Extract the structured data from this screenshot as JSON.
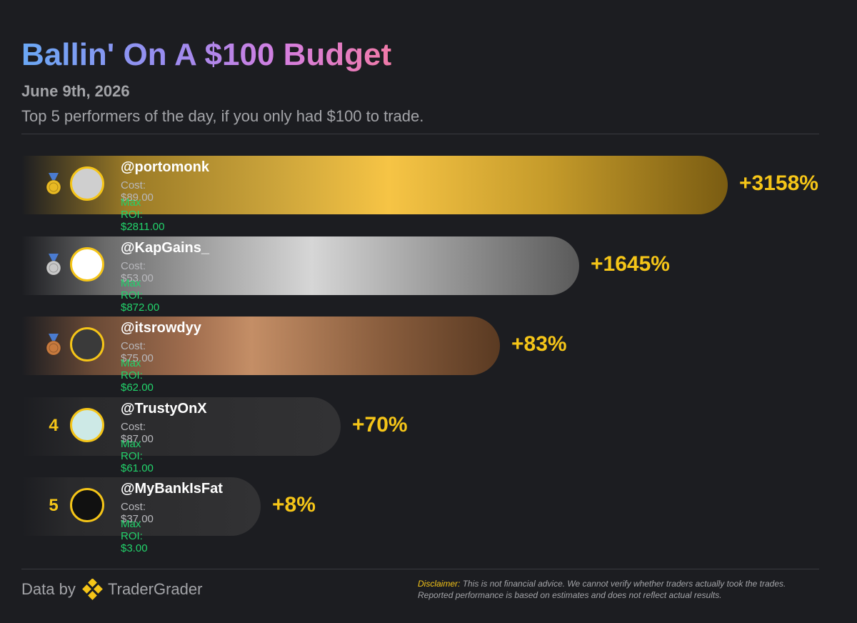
{
  "header": {
    "title": "Ballin' On A $100 Budget",
    "date": "June 9th, 2026",
    "subtitle": "Top 5 performers of the day, if you only had $100 to trade."
  },
  "rows": [
    {
      "handle": "@portomonk",
      "cost": "Cost: $89.00",
      "max_roi": "Max ROI: $2811.00",
      "roi": "+3158%"
    },
    {
      "handle": "@KapGains_",
      "cost": "Cost: $53.00",
      "max_roi": "Max ROI: $872.00",
      "roi": "+1645%"
    },
    {
      "handle": "@itsrowdyy",
      "cost": "Cost: $75.00",
      "max_roi": "Max ROI: $62.00",
      "roi": "+83%"
    },
    {
      "rank": "4",
      "handle": "@TrustyOnX",
      "cost": "Cost: $87.00",
      "max_roi": "Max ROI: $61.00",
      "roi": "+70%"
    },
    {
      "rank": "5",
      "handle": "@MyBankIsFat",
      "cost": "Cost: $37.00",
      "max_roi": "Max ROI: $3.00",
      "roi": "+8%"
    }
  ],
  "footer": {
    "data_by": "Data by",
    "brand": "TraderGrader",
    "disclaimer_label": "Disclaimer:",
    "disclaimer": "This is not financial advice. We cannot verify whether traders actually took the trades. Reported performance is based on estimates and does not reflect actual results."
  }
}
